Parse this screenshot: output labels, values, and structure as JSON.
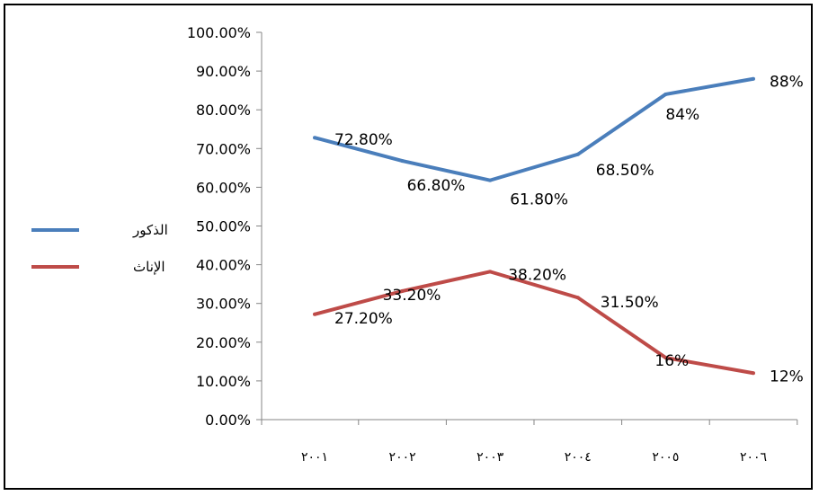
{
  "chart_data": {
    "type": "line",
    "categories": [
      "٢٠٠١",
      "٢٠٠٢",
      "٢٠٠٣",
      "٢٠٠٤",
      "٢٠٠٥",
      "٢٠٠٦"
    ],
    "ylim": [
      0,
      100
    ],
    "y_ticks": [
      "0.00%",
      "10.00%",
      "20.00%",
      "30.00%",
      "40.00%",
      "50.00%",
      "60.00%",
      "70.00%",
      "80.00%",
      "90.00%",
      "100.00%"
    ],
    "grid": false,
    "legend_position": "left",
    "series": [
      {
        "name": "الذكور",
        "color": "#4a7ebb",
        "values": [
          72.8,
          66.8,
          61.8,
          68.5,
          84,
          88
        ],
        "labels": [
          "72.80%",
          "66.80%",
          "61.80%",
          "68.50%",
          "84%",
          "88%"
        ]
      },
      {
        "name": "الإناث",
        "color": "#be4b48",
        "values": [
          27.2,
          33.2,
          38.2,
          31.5,
          16,
          12
        ],
        "labels": [
          "27.20%",
          "33.20%",
          "38.20%",
          "31.50%",
          "16%",
          "12%"
        ]
      }
    ]
  }
}
